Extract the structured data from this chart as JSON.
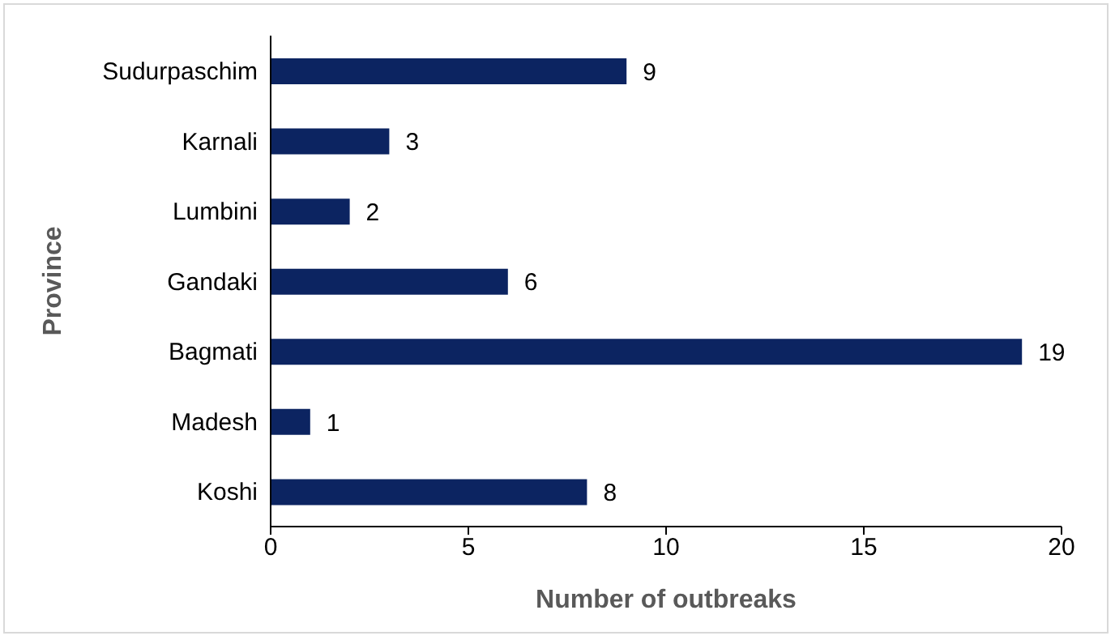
{
  "chart_data": {
    "type": "bar",
    "orientation": "horizontal",
    "xlabel": "Number of outbreaks",
    "ylabel": "Province",
    "categories": [
      "Sudurpaschim",
      "Karnali",
      "Lumbini",
      "Gandaki",
      "Bagmati",
      "Madesh",
      "Koshi"
    ],
    "values": [
      9,
      3,
      2,
      6,
      19,
      1,
      8
    ],
    "color": "#0c2461",
    "xlim": [
      0,
      20
    ],
    "xticks": [
      0,
      5,
      10,
      15,
      20
    ],
    "grid": false,
    "data_labels": true
  }
}
